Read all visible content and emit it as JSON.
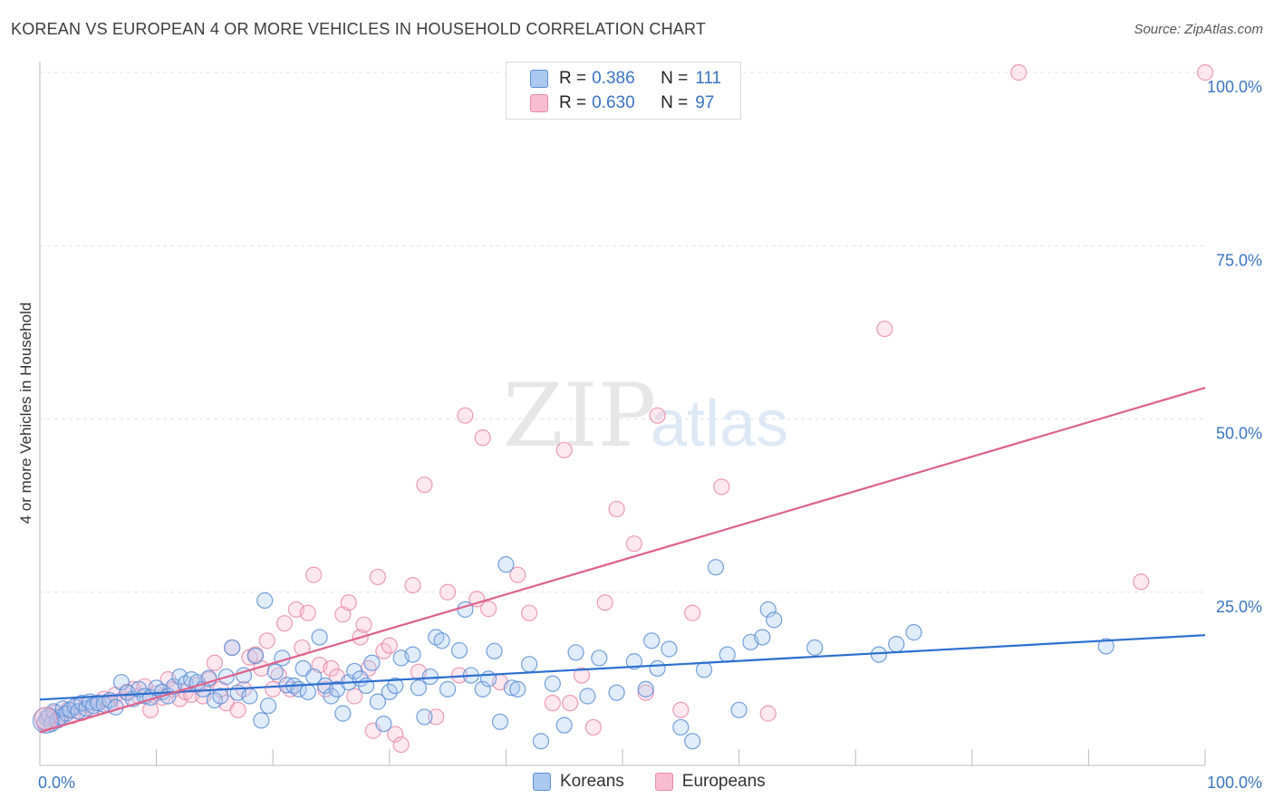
{
  "title": "KOREAN VS EUROPEAN 4 OR MORE VEHICLES IN HOUSEHOLD CORRELATION CHART",
  "source": "Source: ZipAtlas.com",
  "watermark": {
    "zip": "ZIP",
    "atlas": "atlas"
  },
  "legend": {
    "r_label": "R =",
    "n_label": "N =",
    "rows": [
      {
        "series": "Koreans",
        "r": "0.386",
        "n": "111"
      },
      {
        "series": "Europeans",
        "r": "0.630",
        "n": "97"
      }
    ]
  },
  "colors": {
    "koreans_fill": "#aac8f0",
    "koreans_stroke": "#5b8fd6",
    "koreans_line": "#2a6fd0",
    "europeans_fill": "#f8bdd0",
    "europeans_stroke": "#e889a8",
    "europeans_line": "#e0608a",
    "tick_text": "#3a74c4",
    "grid": "#e2e2e2"
  },
  "chart_data": {
    "type": "scatter",
    "title": "KOREAN VS EUROPEAN 4 OR MORE VEHICLES IN HOUSEHOLD CORRELATION CHART",
    "xlabel": "",
    "ylabel": "4 or more Vehicles in Household",
    "xlim": [
      0,
      100
    ],
    "ylim": [
      0,
      100
    ],
    "x_tick_labels": [
      "0.0%",
      "100.0%"
    ],
    "y_ticks": [
      25,
      50,
      75,
      100
    ],
    "y_tick_labels": [
      "25.0%",
      "50.0%",
      "75.0%",
      "100.0%"
    ],
    "grid": true,
    "legend_position": "top-center",
    "bottom_legend": [
      "Koreans",
      "Europeans"
    ],
    "series": [
      {
        "name": "Koreans",
        "r": 0.386,
        "n": 111,
        "trend": {
          "x": [
            0,
            100
          ],
          "y": [
            9.5,
            18.8
          ]
        },
        "points": [
          [
            0.4,
            6.2
          ],
          [
            0.6,
            6.8
          ],
          [
            0.8,
            7.2
          ],
          [
            1.0,
            6.0
          ],
          [
            1.2,
            7.8
          ],
          [
            1.5,
            6.5
          ],
          [
            1.8,
            7.0
          ],
          [
            2.0,
            8.2
          ],
          [
            2.3,
            7.5
          ],
          [
            2.6,
            8.0
          ],
          [
            3.0,
            8.5
          ],
          [
            3.3,
            7.8
          ],
          [
            3.6,
            9.0
          ],
          [
            4.0,
            8.2
          ],
          [
            4.3,
            9.2
          ],
          [
            4.6,
            8.6
          ],
          [
            5.0,
            9.0
          ],
          [
            5.5,
            8.8
          ],
          [
            6.0,
            9.4
          ],
          [
            6.5,
            8.4
          ],
          [
            7.0,
            12.0
          ],
          [
            7.5,
            10.5
          ],
          [
            8.0,
            9.6
          ],
          [
            8.5,
            11.0
          ],
          [
            9.0,
            10.0
          ],
          [
            9.5,
            9.8
          ],
          [
            10.0,
            11.2
          ],
          [
            10.5,
            10.6
          ],
          [
            11.0,
            10.0
          ],
          [
            11.5,
            11.4
          ],
          [
            12.0,
            12.8
          ],
          [
            12.5,
            11.8
          ],
          [
            13.0,
            12.4
          ],
          [
            13.5,
            12.0
          ],
          [
            14.0,
            11.0
          ],
          [
            14.5,
            12.6
          ],
          [
            15.0,
            9.4
          ],
          [
            15.5,
            10.0
          ],
          [
            16.0,
            12.8
          ],
          [
            16.5,
            17.0
          ],
          [
            17.0,
            10.5
          ],
          [
            17.5,
            13.0
          ],
          [
            18.0,
            10.0
          ],
          [
            18.5,
            15.8
          ],
          [
            19.0,
            6.5
          ],
          [
            19.3,
            23.8
          ],
          [
            19.6,
            8.6
          ],
          [
            20.2,
            13.5
          ],
          [
            20.8,
            15.5
          ],
          [
            21.2,
            11.6
          ],
          [
            21.8,
            11.5
          ],
          [
            22.2,
            11.0
          ],
          [
            22.6,
            14.0
          ],
          [
            23.0,
            10.6
          ],
          [
            23.5,
            12.8
          ],
          [
            24.0,
            18.5
          ],
          [
            24.5,
            11.5
          ],
          [
            25.0,
            10.0
          ],
          [
            25.5,
            11.0
          ],
          [
            26.0,
            7.5
          ],
          [
            26.5,
            12.0
          ],
          [
            27.0,
            13.6
          ],
          [
            27.5,
            12.5
          ],
          [
            28.0,
            11.5
          ],
          [
            28.5,
            14.8
          ],
          [
            29.0,
            9.2
          ],
          [
            29.5,
            6.0
          ],
          [
            30.0,
            10.6
          ],
          [
            30.5,
            11.5
          ],
          [
            31.0,
            15.5
          ],
          [
            32.0,
            16.0
          ],
          [
            32.5,
            11.2
          ],
          [
            33.0,
            7.0
          ],
          [
            33.5,
            12.8
          ],
          [
            34.0,
            18.5
          ],
          [
            34.5,
            18.0
          ],
          [
            35.0,
            11.0
          ],
          [
            36.0,
            16.6
          ],
          [
            36.5,
            22.5
          ],
          [
            37.0,
            13.0
          ],
          [
            38.0,
            11.0
          ],
          [
            38.5,
            12.5
          ],
          [
            39.0,
            16.5
          ],
          [
            39.5,
            6.3
          ],
          [
            40.0,
            29.0
          ],
          [
            40.5,
            11.2
          ],
          [
            41.0,
            11.0
          ],
          [
            42.0,
            14.6
          ],
          [
            43.0,
            3.5
          ],
          [
            44.0,
            11.8
          ],
          [
            45.0,
            5.8
          ],
          [
            46.0,
            16.3
          ],
          [
            47.0,
            10.0
          ],
          [
            48.0,
            15.5
          ],
          [
            49.5,
            10.5
          ],
          [
            51.0,
            15.0
          ],
          [
            52.0,
            11.0
          ],
          [
            52.5,
            18.0
          ],
          [
            53.0,
            14.0
          ],
          [
            54.0,
            16.8
          ],
          [
            55.0,
            5.5
          ],
          [
            56.0,
            3.5
          ],
          [
            57.0,
            13.8
          ],
          [
            58.0,
            28.6
          ],
          [
            59.0,
            16.0
          ],
          [
            60.0,
            8.0
          ],
          [
            61.0,
            17.8
          ],
          [
            62.0,
            18.5
          ],
          [
            62.5,
            22.5
          ],
          [
            63.0,
            21.0
          ],
          [
            66.5,
            17.0
          ],
          [
            72.0,
            16.0
          ],
          [
            73.5,
            17.5
          ],
          [
            75.0,
            19.2
          ],
          [
            91.5,
            17.2
          ]
        ]
      },
      {
        "name": "Europeans",
        "r": 0.63,
        "n": 97,
        "trend": {
          "x": [
            0,
            100
          ],
          "y": [
            4.8,
            54.5
          ]
        },
        "points": [
          [
            0.4,
            6.0
          ],
          [
            0.7,
            7.0
          ],
          [
            1.0,
            6.5
          ],
          [
            1.3,
            7.6
          ],
          [
            1.6,
            6.8
          ],
          [
            2.0,
            7.4
          ],
          [
            2.4,
            8.0
          ],
          [
            2.8,
            7.2
          ],
          [
            3.2,
            8.4
          ],
          [
            3.6,
            7.6
          ],
          [
            4.0,
            8.8
          ],
          [
            4.5,
            8.2
          ],
          [
            5.0,
            9.0
          ],
          [
            5.5,
            9.6
          ],
          [
            6.0,
            8.8
          ],
          [
            6.5,
            10.2
          ],
          [
            7.0,
            9.4
          ],
          [
            7.5,
            10.6
          ],
          [
            8.0,
            11.0
          ],
          [
            8.5,
            10.0
          ],
          [
            9.0,
            11.4
          ],
          [
            9.5,
            8.0
          ],
          [
            10.0,
            10.4
          ],
          [
            10.5,
            9.8
          ],
          [
            11.0,
            12.4
          ],
          [
            11.5,
            11.0
          ],
          [
            12.0,
            9.6
          ],
          [
            12.5,
            10.6
          ],
          [
            13.0,
            10.2
          ],
          [
            13.5,
            11.6
          ],
          [
            14.0,
            10.0
          ],
          [
            14.5,
            12.4
          ],
          [
            15.0,
            14.8
          ],
          [
            15.5,
            11.0
          ],
          [
            16.0,
            9.0
          ],
          [
            16.5,
            17.0
          ],
          [
            17.0,
            8.0
          ],
          [
            17.5,
            11.0
          ],
          [
            18.0,
            15.6
          ],
          [
            18.5,
            16.0
          ],
          [
            19.0,
            14.0
          ],
          [
            19.5,
            18.0
          ],
          [
            20.0,
            11.0
          ],
          [
            20.5,
            13.0
          ],
          [
            21.0,
            20.5
          ],
          [
            21.5,
            11.0
          ],
          [
            22.0,
            22.5
          ],
          [
            22.5,
            17.0
          ],
          [
            23.0,
            22.0
          ],
          [
            23.5,
            27.5
          ],
          [
            24.0,
            14.5
          ],
          [
            24.5,
            11.0
          ],
          [
            25.0,
            14.0
          ],
          [
            25.5,
            12.8
          ],
          [
            26.0,
            21.8
          ],
          [
            26.5,
            23.5
          ],
          [
            27.0,
            10.0
          ],
          [
            27.5,
            18.5
          ],
          [
            27.8,
            20.3
          ],
          [
            28.2,
            14.0
          ],
          [
            28.6,
            5.0
          ],
          [
            29.0,
            27.2
          ],
          [
            29.5,
            16.5
          ],
          [
            30.0,
            17.3
          ],
          [
            30.5,
            4.5
          ],
          [
            31.0,
            3.0
          ],
          [
            32.0,
            26.0
          ],
          [
            32.5,
            13.5
          ],
          [
            33.0,
            40.5
          ],
          [
            34.0,
            7.0
          ],
          [
            35.0,
            25.0
          ],
          [
            36.0,
            13.0
          ],
          [
            36.5,
            50.5
          ],
          [
            37.5,
            24.0
          ],
          [
            38.0,
            47.3
          ],
          [
            38.5,
            22.6
          ],
          [
            39.5,
            12.0
          ],
          [
            41.0,
            27.5
          ],
          [
            42.0,
            22.0
          ],
          [
            44.0,
            9.0
          ],
          [
            45.0,
            45.5
          ],
          [
            45.5,
            9.0
          ],
          [
            46.5,
            13.0
          ],
          [
            47.5,
            5.5
          ],
          [
            48.5,
            23.5
          ],
          [
            49.5,
            37.0
          ],
          [
            51.0,
            32.0
          ],
          [
            52.0,
            10.5
          ],
          [
            53.0,
            50.5
          ],
          [
            55.0,
            8.0
          ],
          [
            56.0,
            22.0
          ],
          [
            58.5,
            40.2
          ],
          [
            62.5,
            7.5
          ],
          [
            72.5,
            63.0
          ],
          [
            84.0,
            100.0
          ],
          [
            94.5,
            26.5
          ],
          [
            100.0,
            100.0
          ]
        ]
      }
    ]
  }
}
